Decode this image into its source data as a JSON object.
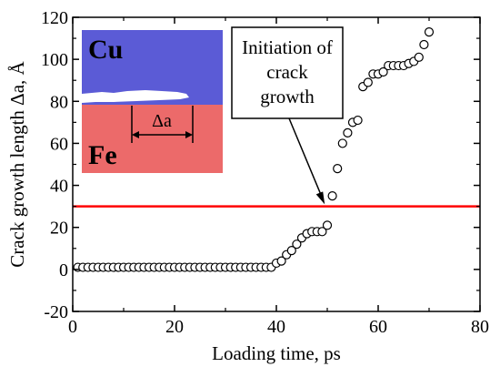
{
  "chart_data": {
    "type": "scatter",
    "xlabel": "Loading time, ps",
    "ylabel": "Crack growth length Δa, Å",
    "xlim": [
      0,
      80
    ],
    "ylim": [
      -20,
      120
    ],
    "xticks": [
      0,
      20,
      40,
      60,
      80
    ],
    "yticks": [
      -20,
      0,
      20,
      40,
      60,
      80,
      100,
      120
    ],
    "x_tick_labels": [
      "0",
      "20",
      "40",
      "60",
      "80"
    ],
    "y_tick_labels": [
      "-20",
      "0",
      "20",
      "40",
      "60",
      "80",
      "100",
      "120"
    ],
    "grid": false,
    "series": [
      {
        "marker": "open-circle",
        "x": [
          1,
          2,
          3,
          4,
          5,
          6,
          7,
          8,
          9,
          10,
          11,
          12,
          13,
          14,
          15,
          16,
          17,
          18,
          19,
          20,
          21,
          22,
          23,
          24,
          25,
          26,
          27,
          28,
          29,
          30,
          31,
          32,
          33,
          34,
          35,
          36,
          37,
          38,
          39,
          40,
          41,
          42,
          43,
          44,
          45,
          46,
          47,
          48,
          49,
          50,
          51,
          52,
          53,
          54,
          55,
          56,
          57,
          58,
          59,
          60,
          61,
          62,
          63,
          64,
          65,
          66,
          67,
          68,
          69,
          70
        ],
        "y": [
          1,
          1,
          1,
          1,
          1,
          1,
          1,
          1,
          1,
          1,
          1,
          1,
          1,
          1,
          1,
          1,
          1,
          1,
          1,
          1,
          1,
          1,
          1,
          1,
          1,
          1,
          1,
          1,
          1,
          1,
          1,
          1,
          1,
          1,
          1,
          1,
          1,
          1,
          1,
          3,
          4,
          7,
          9,
          12,
          15,
          17,
          18,
          18,
          18,
          21,
          35,
          48,
          60,
          65,
          70,
          71,
          87,
          89,
          93,
          93,
          94,
          97,
          97,
          97,
          97,
          98,
          99,
          101,
          107,
          113
        ]
      }
    ],
    "reference_line": {
      "y": 30,
      "color": "#ff0000"
    },
    "annotation": {
      "lines": [
        "Initiation of",
        "crack",
        "growth"
      ],
      "arrow_to": [
        49.5,
        31
      ]
    },
    "inset": {
      "top_label": "Cu",
      "bottom_label": "Fe",
      "delta_label": "Δa",
      "top_color": "#5b5bd6",
      "bottom_color": "#ec6a6a"
    }
  }
}
